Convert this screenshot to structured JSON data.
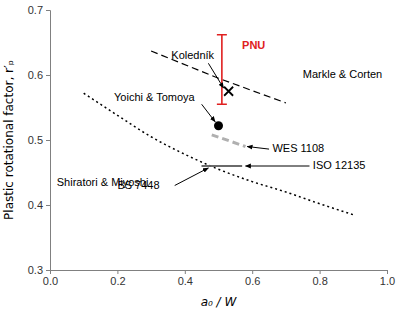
{
  "chart_data": {
    "type": "line",
    "x_label": "a₀ / W",
    "y_label": "Plastic rotational factor, r′ₚ",
    "xlim": [
      0,
      1
    ],
    "ylim": [
      0.3,
      0.7
    ],
    "xticks": [
      {
        "value": 0,
        "label": "0.0"
      },
      0.2,
      0.4,
      0.6,
      0.8,
      {
        "value": 1,
        "label": "1.0"
      }
    ],
    "yticks": [
      0.3,
      0.4,
      0.5,
      0.6,
      0.7
    ],
    "grid": false,
    "series": [
      {
        "name": "Markle & Corten",
        "type": "line",
        "line_style": "dashed",
        "color": "#000000",
        "x": [
          0.3,
          0.5,
          0.7
        ],
        "values": [
          0.637,
          0.595,
          0.557
        ],
        "label_x": 0.75,
        "label_y": 0.595
      },
      {
        "name": "Shiratori & Miyoshi",
        "type": "line",
        "line_style": "dotted",
        "color": "#000000",
        "x": [
          0.1,
          0.2,
          0.3,
          0.4,
          0.5,
          0.6,
          0.7,
          0.8,
          0.9
        ],
        "values": [
          0.572,
          0.538,
          0.505,
          0.478,
          0.455,
          0.436,
          0.42,
          0.402,
          0.385
        ],
        "label_x": 0.02,
        "label_y": 0.43
      },
      {
        "name": "WES 1108",
        "type": "line",
        "line_style": "dashed",
        "color": "#b0b0b0",
        "x": [
          0.48,
          0.58
        ],
        "values": [
          0.508,
          0.49
        ],
        "label_x": 0.66,
        "label_y": 0.482,
        "arrow_from": [
          0.65,
          0.486
        ],
        "arrow_to": [
          0.585,
          0.49
        ]
      },
      {
        "name": "BS 7448",
        "type": "line",
        "line_style": "solid",
        "color": "#606060",
        "x": [
          0.45,
          0.57
        ],
        "values": [
          0.46,
          0.46
        ],
        "label_x": 0.2,
        "label_y": 0.425,
        "arrow_from": [
          0.37,
          0.43
        ],
        "arrow_to": [
          0.47,
          0.457
        ]
      },
      {
        "name": "ISO 12135",
        "type": "line",
        "line_style": "solid",
        "color": "#606060",
        "x": [
          0.45,
          0.57
        ],
        "values": [
          0.46,
          0.46
        ],
        "label_x": 0.78,
        "label_y": 0.455,
        "arrow_from": [
          0.77,
          0.46
        ],
        "arrow_to": [
          0.58,
          0.46
        ]
      },
      {
        "name": "Yoichi & Tomoya",
        "type": "scatter",
        "marker": "circle",
        "color": "#000000",
        "x": [
          0.5
        ],
        "values": [
          0.522
        ],
        "label_x": 0.19,
        "label_y": 0.56,
        "arrow_from": [
          0.45,
          0.555
        ],
        "arrow_to": [
          0.49,
          0.528
        ]
      },
      {
        "name": "Koledník",
        "type": "scatter",
        "marker": "x",
        "color": "#000000",
        "x": [
          0.53
        ],
        "values": [
          0.575
        ],
        "label_x": 0.36,
        "label_y": 0.625,
        "arrow_from": [
          0.47,
          0.618
        ],
        "arrow_to": [
          0.515,
          0.58
        ]
      },
      {
        "name": "PNU",
        "type": "range",
        "color": "#e02020",
        "x": [
          0.51
        ],
        "low": [
          0.555
        ],
        "high": [
          0.662
        ],
        "label_x": 0.57,
        "label_y": 0.64
      }
    ]
  }
}
